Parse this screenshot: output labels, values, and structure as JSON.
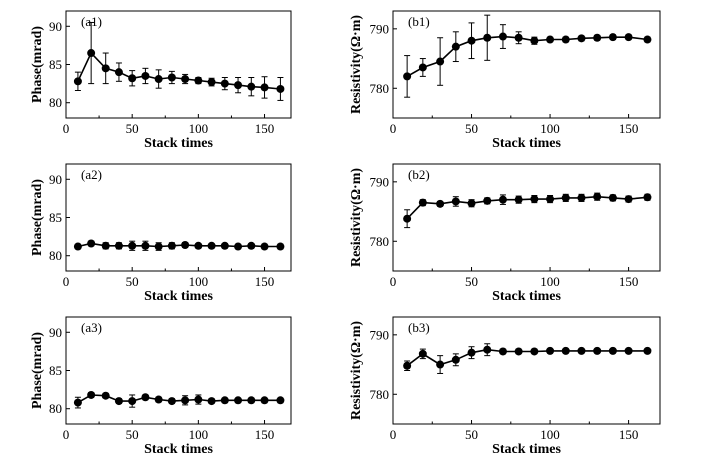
{
  "chart_data": [
    {
      "id": "a1",
      "type": "line",
      "panel_label": "(a1)",
      "xlabel": "Stack times",
      "ylabel": "Phase(mrad)",
      "xlim": [
        0,
        170
      ],
      "ylim": [
        78,
        92
      ],
      "xticks": [
        0,
        50,
        100,
        150
      ],
      "yticks": [
        80,
        85,
        90
      ],
      "x": [
        9,
        19,
        30,
        40,
        50,
        60,
        70,
        80,
        90,
        100,
        110,
        120,
        130,
        140,
        150,
        162
      ],
      "values": [
        82.8,
        86.5,
        84.5,
        84.0,
        83.2,
        83.5,
        83.1,
        83.3,
        83.1,
        82.9,
        82.7,
        82.5,
        82.3,
        82.1,
        82.0,
        81.8
      ],
      "errors": [
        1.2,
        4.0,
        2.0,
        1.2,
        1.0,
        1.0,
        1.2,
        0.8,
        0.6,
        0.4,
        0.5,
        0.8,
        1.0,
        1.2,
        1.4,
        1.5
      ]
    },
    {
      "id": "b1",
      "type": "line",
      "panel_label": "(b1)",
      "xlabel": "Stack times",
      "ylabel": "Resistivity(Ω·m)",
      "xlim": [
        0,
        170
      ],
      "ylim": [
        775,
        793
      ],
      "xticks": [
        0,
        50,
        100,
        150
      ],
      "yticks": [
        780,
        790
      ],
      "x": [
        9,
        19,
        30,
        40,
        50,
        60,
        70,
        80,
        90,
        100,
        110,
        120,
        130,
        140,
        150,
        162
      ],
      "values": [
        782.0,
        783.5,
        784.5,
        787.0,
        788.0,
        788.5,
        788.7,
        788.5,
        788.0,
        788.2,
        788.2,
        788.4,
        788.5,
        788.6,
        788.6,
        788.2
      ],
      "errors": [
        3.5,
        1.5,
        4.0,
        2.5,
        3.0,
        3.8,
        2.0,
        1.0,
        0.6,
        0.4,
        0.4,
        0.4,
        0.4,
        0.4,
        0.4,
        0.4
      ]
    },
    {
      "id": "a2",
      "type": "line",
      "panel_label": "(a2)",
      "xlabel": "Stack times",
      "ylabel": "Phase(mrad)",
      "xlim": [
        0,
        170
      ],
      "ylim": [
        78,
        92
      ],
      "xticks": [
        0,
        50,
        100,
        150
      ],
      "yticks": [
        80,
        85,
        90
      ],
      "x": [
        9,
        19,
        30,
        40,
        50,
        60,
        70,
        80,
        90,
        100,
        110,
        120,
        130,
        140,
        150,
        162
      ],
      "values": [
        81.2,
        81.6,
        81.3,
        81.3,
        81.3,
        81.3,
        81.2,
        81.3,
        81.4,
        81.3,
        81.3,
        81.3,
        81.2,
        81.3,
        81.2,
        81.2
      ],
      "errors": [
        0.3,
        0.3,
        0.4,
        0.4,
        0.6,
        0.6,
        0.5,
        0.4,
        0.3,
        0.3,
        0.3,
        0.3,
        0.3,
        0.3,
        0.3,
        0.3
      ]
    },
    {
      "id": "b2",
      "type": "line",
      "panel_label": "(b2)",
      "xlabel": "Stack times",
      "ylabel": "Resistivity(Ω·m)",
      "xlim": [
        0,
        170
      ],
      "ylim": [
        775,
        793
      ],
      "xticks": [
        0,
        50,
        100,
        150
      ],
      "yticks": [
        780,
        790
      ],
      "x": [
        9,
        19,
        30,
        40,
        50,
        60,
        70,
        80,
        90,
        100,
        110,
        120,
        130,
        140,
        150,
        162
      ],
      "values": [
        783.8,
        786.5,
        786.3,
        786.7,
        786.4,
        786.8,
        787.0,
        787.0,
        787.1,
        787.1,
        787.3,
        787.3,
        787.5,
        787.3,
        787.1,
        787.4
      ],
      "errors": [
        1.5,
        0.5,
        0.4,
        0.8,
        0.6,
        0.5,
        0.8,
        0.6,
        0.6,
        0.6,
        0.6,
        0.6,
        0.6,
        0.5,
        0.5,
        0.5
      ]
    },
    {
      "id": "a3",
      "type": "line",
      "panel_label": "(a3)",
      "xlabel": "Stack times",
      "ylabel": "Phase(mrad)",
      "xlim": [
        0,
        170
      ],
      "ylim": [
        78,
        92
      ],
      "xticks": [
        0,
        50,
        100,
        150
      ],
      "yticks": [
        80,
        85,
        90
      ],
      "x": [
        9,
        19,
        30,
        40,
        50,
        60,
        70,
        80,
        90,
        100,
        110,
        120,
        130,
        140,
        150,
        162
      ],
      "values": [
        80.8,
        81.8,
        81.7,
        81.0,
        81.0,
        81.5,
        81.2,
        81.0,
        81.1,
        81.2,
        81.0,
        81.1,
        81.1,
        81.1,
        81.1,
        81.1
      ],
      "errors": [
        0.7,
        0.3,
        0.3,
        0.3,
        0.8,
        0.3,
        0.3,
        0.3,
        0.6,
        0.6,
        0.3,
        0.3,
        0.3,
        0.3,
        0.3,
        0.3
      ]
    },
    {
      "id": "b3",
      "type": "line",
      "panel_label": "(b3)",
      "xlabel": "Stack times",
      "ylabel": "Resistivity(Ω·m)",
      "xlim": [
        0,
        170
      ],
      "ylim": [
        775,
        793
      ],
      "xticks": [
        0,
        50,
        100,
        150
      ],
      "yticks": [
        780,
        790
      ],
      "x": [
        9,
        19,
        30,
        40,
        50,
        60,
        70,
        80,
        90,
        100,
        110,
        120,
        130,
        140,
        150,
        162
      ],
      "values": [
        784.8,
        786.8,
        785.0,
        785.8,
        787.0,
        787.5,
        787.2,
        787.2,
        787.2,
        787.3,
        787.3,
        787.3,
        787.3,
        787.3,
        787.3,
        787.3
      ],
      "errors": [
        0.8,
        0.8,
        1.5,
        1.0,
        1.0,
        1.0,
        0.4,
        0.3,
        0.3,
        0.3,
        0.3,
        0.3,
        0.3,
        0.3,
        0.3,
        0.3
      ]
    }
  ]
}
